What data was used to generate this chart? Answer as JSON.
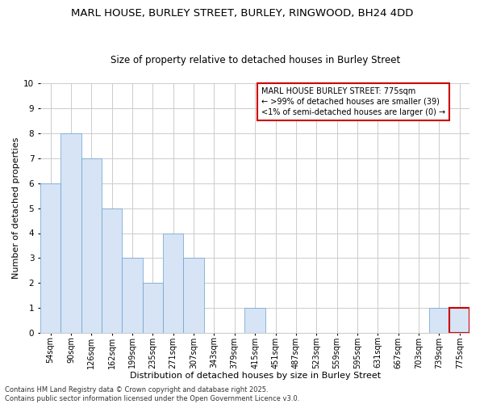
{
  "title": "MARL HOUSE, BURLEY STREET, BURLEY, RINGWOOD, BH24 4DD",
  "subtitle": "Size of property relative to detached houses in Burley Street",
  "xlabel": "Distribution of detached houses by size in Burley Street",
  "ylabel": "Number of detached properties",
  "categories": [
    "54sqm",
    "90sqm",
    "126sqm",
    "162sqm",
    "199sqm",
    "235sqm",
    "271sqm",
    "307sqm",
    "343sqm",
    "379sqm",
    "415sqm",
    "451sqm",
    "487sqm",
    "523sqm",
    "559sqm",
    "595sqm",
    "631sqm",
    "667sqm",
    "703sqm",
    "739sqm",
    "775sqm"
  ],
  "values": [
    6,
    8,
    7,
    5,
    3,
    2,
    4,
    3,
    0,
    0,
    1,
    0,
    0,
    0,
    0,
    0,
    0,
    0,
    0,
    1,
    1
  ],
  "bar_color": "#d6e4f5",
  "bar_edge_color": "#6a9fd0",
  "highlight_index": 20,
  "highlight_bar_edge_color": "#cc0000",
  "annotation_box_text": "MARL HOUSE BURLEY STREET: 775sqm\n← >99% of detached houses are smaller (39)\n<1% of semi-detached houses are larger (0) →",
  "annotation_box_color": "#ffffff",
  "annotation_box_edge_color": "#cc0000",
  "ylim": [
    0,
    10
  ],
  "yticks": [
    0,
    1,
    2,
    3,
    4,
    5,
    6,
    7,
    8,
    9,
    10
  ],
  "footnote": "Contains HM Land Registry data © Crown copyright and database right 2025.\nContains public sector information licensed under the Open Government Licence v3.0.",
  "bg_color": "#ffffff",
  "grid_color": "#cccccc",
  "title_fontsize": 9.5,
  "subtitle_fontsize": 8.5,
  "axis_label_fontsize": 8,
  "tick_fontsize": 7,
  "annotation_fontsize": 7,
  "footnote_fontsize": 6
}
